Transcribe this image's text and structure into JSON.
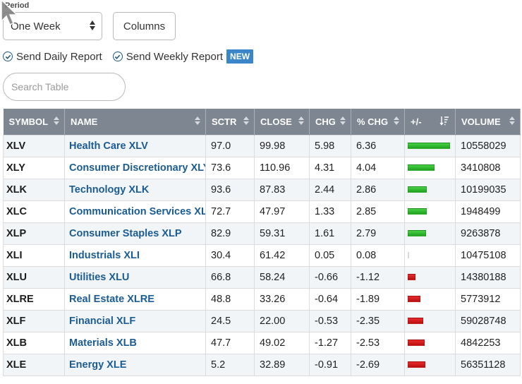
{
  "controls": {
    "period_label": "Period",
    "period_value": "One Week",
    "columns_label": "Columns",
    "daily_report_label": "Send Daily Report",
    "weekly_report_label": "Send Weekly Report",
    "new_badge": "NEW",
    "search_placeholder": "Search Table"
  },
  "colors": {
    "header_bg": "#7d8691",
    "link": "#1a5c93",
    "badge": "#3a86c8",
    "positive": "#1ea21d",
    "negative": "#c81414"
  },
  "table": {
    "headers": {
      "symbol": "SYMBOL",
      "name": "NAME",
      "sctr": "SCTR",
      "close": "CLOSE",
      "chg": "CHG",
      "pct_chg": "% CHG",
      "plus_minus": "+/-",
      "volume": "VOLUME"
    },
    "bar_max_pct": 6.36,
    "rows": [
      {
        "symbol": "XLV",
        "name": "Health Care XLV",
        "sctr": "97.0",
        "close": "99.98",
        "chg": "5.98",
        "pct_chg": "6.36",
        "volume": "10558029"
      },
      {
        "symbol": "XLY",
        "name": "Consumer Discretionary XLY",
        "sctr": "73.6",
        "close": "110.96",
        "chg": "4.31",
        "pct_chg": "4.04",
        "volume": "3410808"
      },
      {
        "symbol": "XLK",
        "name": "Technology XLK",
        "sctr": "93.6",
        "close": "87.83",
        "chg": "2.44",
        "pct_chg": "2.86",
        "volume": "10199035"
      },
      {
        "symbol": "XLC",
        "name": "Communication Services XLC",
        "sctr": "72.7",
        "close": "47.97",
        "chg": "1.33",
        "pct_chg": "2.85",
        "volume": "1948499"
      },
      {
        "symbol": "XLP",
        "name": "Consumer Staples XLP",
        "sctr": "82.9",
        "close": "59.31",
        "chg": "1.61",
        "pct_chg": "2.79",
        "volume": "9263878"
      },
      {
        "symbol": "XLI",
        "name": "Industrials XLI",
        "sctr": "30.4",
        "close": "61.42",
        "chg": "0.05",
        "pct_chg": "0.08",
        "volume": "10475108"
      },
      {
        "symbol": "XLU",
        "name": "Utilities XLU",
        "sctr": "66.8",
        "close": "58.24",
        "chg": "-0.66",
        "pct_chg": "-1.12",
        "volume": "14380188"
      },
      {
        "symbol": "XLRE",
        "name": "Real Estate XLRE",
        "sctr": "48.8",
        "close": "33.26",
        "chg": "-0.64",
        "pct_chg": "-1.89",
        "volume": "5773912"
      },
      {
        "symbol": "XLF",
        "name": "Financial XLF",
        "sctr": "24.5",
        "close": "22.00",
        "chg": "-0.53",
        "pct_chg": "-2.35",
        "volume": "59028748"
      },
      {
        "symbol": "XLB",
        "name": "Materials XLB",
        "sctr": "47.7",
        "close": "49.02",
        "chg": "-1.27",
        "pct_chg": "-2.53",
        "volume": "4842253"
      },
      {
        "symbol": "XLE",
        "name": "Energy XLE",
        "sctr": "5.2",
        "close": "32.89",
        "chg": "-0.91",
        "pct_chg": "-2.69",
        "volume": "56351128"
      }
    ]
  }
}
